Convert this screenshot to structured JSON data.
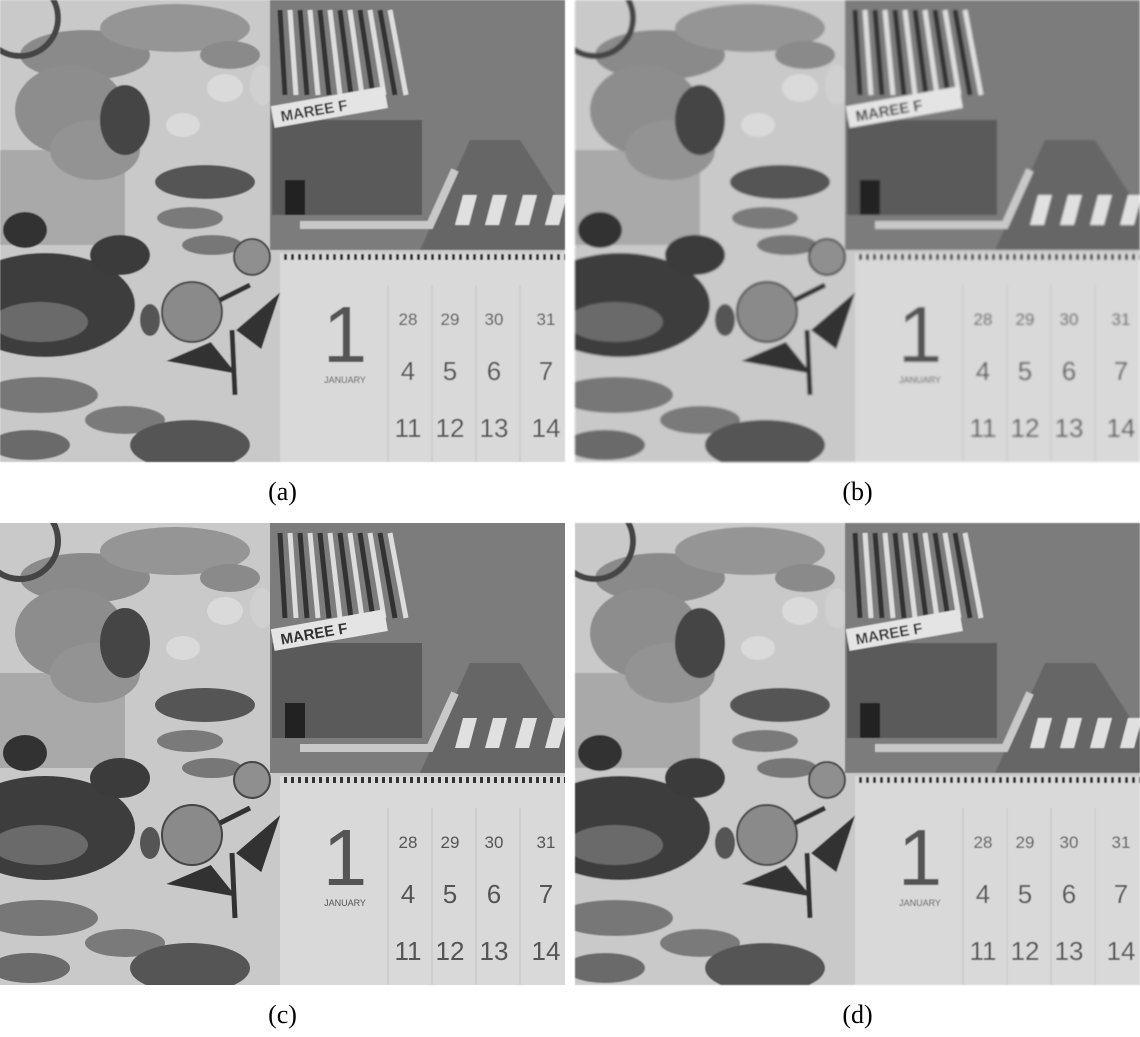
{
  "panels": [
    {
      "caption": "(a)"
    },
    {
      "caption": "(b)"
    },
    {
      "caption": "(c)"
    },
    {
      "caption": "(d)"
    }
  ],
  "scene": {
    "sign": "MAREE F",
    "calendar": {
      "day": "1",
      "month": "JANUARY",
      "rows": [
        [
          "28",
          "29",
          "30",
          "31"
        ],
        [
          "4",
          "5",
          "6",
          "7"
        ],
        [
          "11",
          "12",
          "13",
          "14"
        ]
      ]
    }
  }
}
